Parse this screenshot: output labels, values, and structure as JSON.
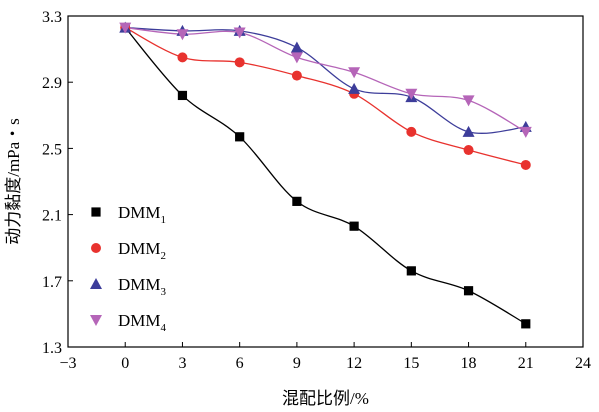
{
  "chart_data": {
    "type": "line",
    "xlabel": "混配比例/%",
    "ylabel": "动力黏度/mPa・s",
    "xlim": [
      -3,
      24
    ],
    "ylim": [
      1.3,
      3.3
    ],
    "xticks": [
      -3,
      0,
      3,
      6,
      9,
      12,
      15,
      18,
      21,
      24
    ],
    "xtick_labels": [
      "−3",
      "0",
      "3",
      "6",
      "9",
      "12",
      "15",
      "18",
      "21",
      "24"
    ],
    "yticks": [
      1.3,
      1.7,
      2.1,
      2.5,
      2.9,
      3.3
    ],
    "ytick_labels": [
      "1.3",
      "1.7",
      "2.1",
      "2.5",
      "2.9",
      "3.3"
    ],
    "grid": false,
    "legend_position": "bottom-left",
    "series": [
      {
        "name": "DMM",
        "subscript": "1",
        "marker": "square",
        "color": "#000000",
        "x": [
          0,
          3,
          6,
          9,
          12,
          15,
          18,
          21
        ],
        "y": [
          3.23,
          2.82,
          2.57,
          2.18,
          2.03,
          1.76,
          1.64,
          1.44
        ]
      },
      {
        "name": "DMM",
        "subscript": "2",
        "marker": "circle",
        "color": "#e8322e",
        "x": [
          0,
          3,
          6,
          9,
          12,
          15,
          18,
          21
        ],
        "y": [
          3.23,
          3.05,
          3.02,
          2.94,
          2.83,
          2.6,
          2.49,
          2.4
        ]
      },
      {
        "name": "DMM",
        "subscript": "3",
        "marker": "triangle-up",
        "color": "#3d3d9a",
        "x": [
          0,
          3,
          6,
          9,
          12,
          15,
          18,
          21
        ],
        "y": [
          3.23,
          3.21,
          3.21,
          3.11,
          2.86,
          2.81,
          2.6,
          2.63
        ]
      },
      {
        "name": "DMM",
        "subscript": "4",
        "marker": "triangle-down",
        "color": "#b565b8",
        "x": [
          0,
          3,
          6,
          9,
          12,
          15,
          18,
          21
        ],
        "y": [
          3.23,
          3.19,
          3.2,
          3.05,
          2.96,
          2.83,
          2.79,
          2.6
        ]
      }
    ]
  }
}
